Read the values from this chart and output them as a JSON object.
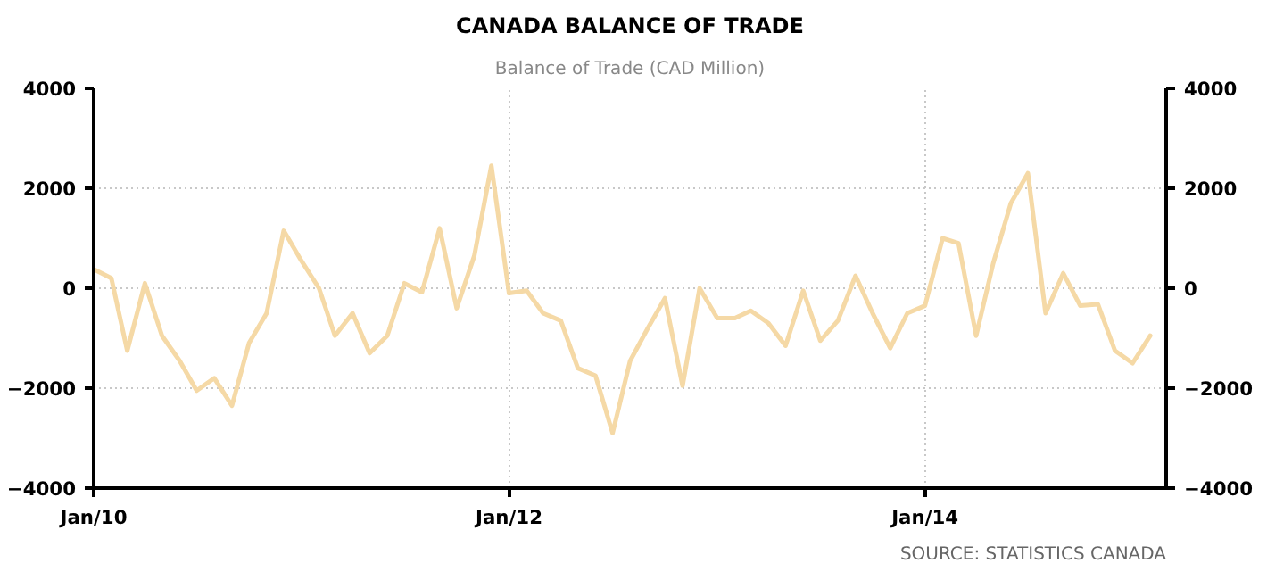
{
  "chart_data": {
    "type": "line",
    "title": "CANADA BALANCE OF TRADE",
    "subtitle": "Balance of Trade (CAD Million)",
    "annotations": [
      "SOURCE: STATISTICS CANADA"
    ],
    "x": [
      "2010-01",
      "2010-02",
      "2010-03",
      "2010-04",
      "2010-05",
      "2010-06",
      "2010-07",
      "2010-08",
      "2010-09",
      "2010-10",
      "2010-11",
      "2010-12",
      "2011-01",
      "2011-02",
      "2011-03",
      "2011-04",
      "2011-05",
      "2011-06",
      "2011-07",
      "2011-08",
      "2011-09",
      "2011-10",
      "2011-11",
      "2011-12",
      "2012-01",
      "2012-02",
      "2012-03",
      "2012-04",
      "2012-05",
      "2012-06",
      "2012-07",
      "2012-08",
      "2012-09",
      "2012-10",
      "2012-11",
      "2012-12",
      "2013-01",
      "2013-02",
      "2013-03",
      "2013-04",
      "2013-05",
      "2013-06",
      "2013-07",
      "2013-08",
      "2013-09",
      "2013-10",
      "2013-11",
      "2013-12",
      "2014-01",
      "2014-02",
      "2014-03",
      "2014-04",
      "2014-05",
      "2014-06",
      "2014-07",
      "2014-08",
      "2014-09",
      "2014-10",
      "2014-11",
      "2014-12",
      "2015-01",
      "2015-02"
    ],
    "series": [
      {
        "color": "#f5d9a6",
        "values": [
          380,
          200,
          -1250,
          100,
          -950,
          -1450,
          -2050,
          -1800,
          -2350,
          -1100,
          -500,
          1150,
          550,
          0,
          -950,
          -500,
          -1300,
          -950,
          100,
          -80,
          1200,
          -400,
          650,
          2450,
          -100,
          -50,
          -500,
          -650,
          -1600,
          -1750,
          -2900,
          -1450,
          -800,
          -200,
          -1950,
          0,
          -600,
          -600,
          -450,
          -700,
          -1150,
          -50,
          -1050,
          -650,
          250,
          -500,
          -1200,
          -500,
          -350,
          1000,
          900,
          -950,
          500,
          1700,
          2300,
          -500,
          300,
          -350,
          -320,
          -1250,
          -1500,
          -950
        ]
      }
    ],
    "xlim": [
      "2010-01",
      "2015-03"
    ],
    "xticks": [
      {
        "value": "2010-01",
        "label": "Jan/10"
      },
      {
        "value": "2012-01",
        "label": "Jan/12"
      },
      {
        "value": "2014-01",
        "label": "Jan/14"
      }
    ],
    "ylim": [
      -4000,
      4000
    ],
    "yticks": [
      -4000,
      -2000,
      0,
      2000,
      4000
    ],
    "y2lim": [
      -4000,
      4000
    ],
    "y2ticks": [
      -4000,
      -2000,
      0,
      2000,
      4000
    ],
    "grid": true,
    "marker": "none",
    "line_style": "solid"
  }
}
